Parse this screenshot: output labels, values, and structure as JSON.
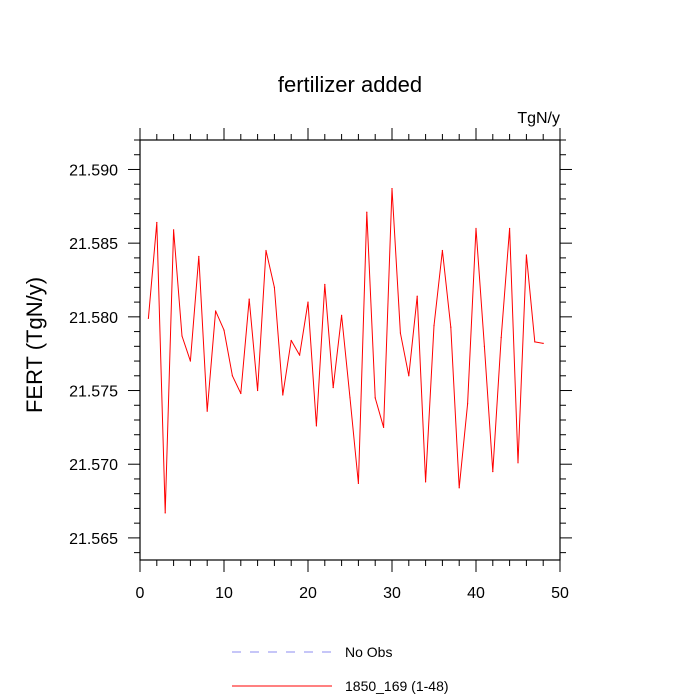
{
  "chart_data": {
    "type": "line",
    "title": "fertilizer added",
    "units_label": "TgN/y",
    "ylabel": "FERT  (TgN/y)",
    "xlabel": "",
    "xlim": [
      0,
      50
    ],
    "ylim": [
      21.5635,
      21.592
    ],
    "x_ticks": [
      0,
      10,
      20,
      30,
      40,
      50
    ],
    "x_tick_labels": [
      "0",
      "10",
      "20",
      "30",
      "40",
      "50"
    ],
    "y_ticks": [
      21.565,
      21.57,
      21.575,
      21.58,
      21.585,
      21.59
    ],
    "y_tick_labels": [
      "21.565",
      "21.570",
      "21.575",
      "21.580",
      "21.585",
      "21.590"
    ],
    "grid": false,
    "legend_position": "bottom",
    "legend": [
      {
        "name": "No Obs",
        "color": "#8c8cf0",
        "style": "dashed"
      },
      {
        "name": "1850_169 (1-48)",
        "color": "#ff0000",
        "style": "solid"
      }
    ],
    "series": [
      {
        "name": "1850_169 (1-48)",
        "color": "#ff0000",
        "x": [
          1,
          2,
          3,
          4,
          5,
          6,
          7,
          8,
          9,
          10,
          11,
          12,
          13,
          14,
          15,
          16,
          17,
          18,
          19,
          20,
          21,
          22,
          23,
          24,
          25,
          26,
          27,
          28,
          29,
          30,
          31,
          32,
          33,
          34,
          35,
          36,
          37,
          38,
          39,
          40,
          41,
          42,
          43,
          44,
          45,
          46,
          47,
          48
        ],
        "values": [
          21.5799,
          21.5864,
          21.5667,
          21.5859,
          21.5787,
          21.577,
          21.5841,
          21.5736,
          21.5804,
          21.5791,
          21.576,
          21.5748,
          21.5812,
          21.575,
          21.5845,
          21.582,
          21.5747,
          21.5784,
          21.5774,
          21.581,
          21.5726,
          21.5822,
          21.5752,
          21.5801,
          21.5745,
          21.5687,
          21.5871,
          21.5745,
          21.5725,
          21.5887,
          21.5789,
          21.576,
          21.5814,
          21.5688,
          21.5794,
          21.5845,
          21.5793,
          21.5684,
          21.5741,
          21.586,
          21.578,
          21.5695,
          21.5786,
          21.586,
          21.5701,
          21.5842,
          21.5783,
          21.5782
        ]
      }
    ]
  }
}
